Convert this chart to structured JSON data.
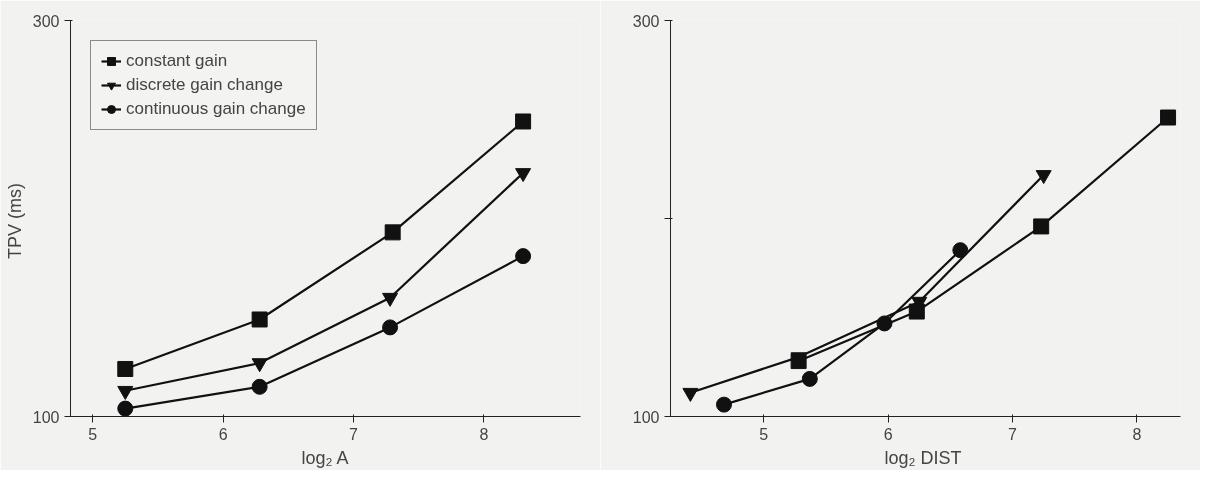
{
  "chart_data": [
    {
      "type": "line",
      "xlabel": "log₂ A",
      "ylabel": "TPV  (ms)",
      "xlim": [
        4.83,
        8.74
      ],
      "ylim": [
        100,
        300
      ],
      "xticks": [
        5,
        6,
        7,
        8
      ],
      "yticks": [
        100,
        300
      ],
      "grid": false,
      "legend": "top left",
      "line_style": "solid",
      "series": [
        {
          "name": "constant gain",
          "color": "#111111",
          "marker": "square",
          "x": [
            5.25,
            6.28,
            7.3,
            8.3
          ],
          "values": [
            124,
            149,
            193,
            249
          ]
        },
        {
          "name": "discrete gain change",
          "color": "#111111",
          "marker": "triangle_down",
          "x": [
            5.25,
            6.28,
            7.28,
            8.3
          ],
          "values": [
            113,
            127,
            160,
            223
          ]
        },
        {
          "name": "continuous gain change",
          "color": "#111111",
          "marker": "circle",
          "x": [
            5.25,
            6.28,
            7.28,
            8.3
          ],
          "values": [
            104,
            115,
            145,
            181
          ]
        }
      ]
    },
    {
      "type": "line",
      "xlabel": "log₂  DIST",
      "xlim": [
        4.25,
        8.35
      ],
      "ylim": [
        100,
        300
      ],
      "xticks": [
        5,
        6,
        7,
        8
      ],
      "yticks": [
        100,
        {
          "value": 200,
          "label": null
        },
        300
      ],
      "grid": false,
      "line_style": "solid",
      "series": [
        {
          "color": "#111111",
          "marker": "square",
          "x": [
            5.28,
            6.23,
            7.23,
            8.25
          ],
          "values": [
            128,
            153,
            196,
            251
          ]
        },
        {
          "color": "#111111",
          "marker": "triangle_down",
          "x": [
            4.41,
            5.28,
            6.25,
            7.25
          ],
          "values": [
            112,
            130,
            158,
            222
          ]
        },
        {
          "color": "#111111",
          "marker": "circle",
          "x": [
            4.68,
            5.37,
            5.97,
            6.58
          ],
          "values": [
            106,
            119,
            147,
            184
          ]
        }
      ]
    }
  ]
}
